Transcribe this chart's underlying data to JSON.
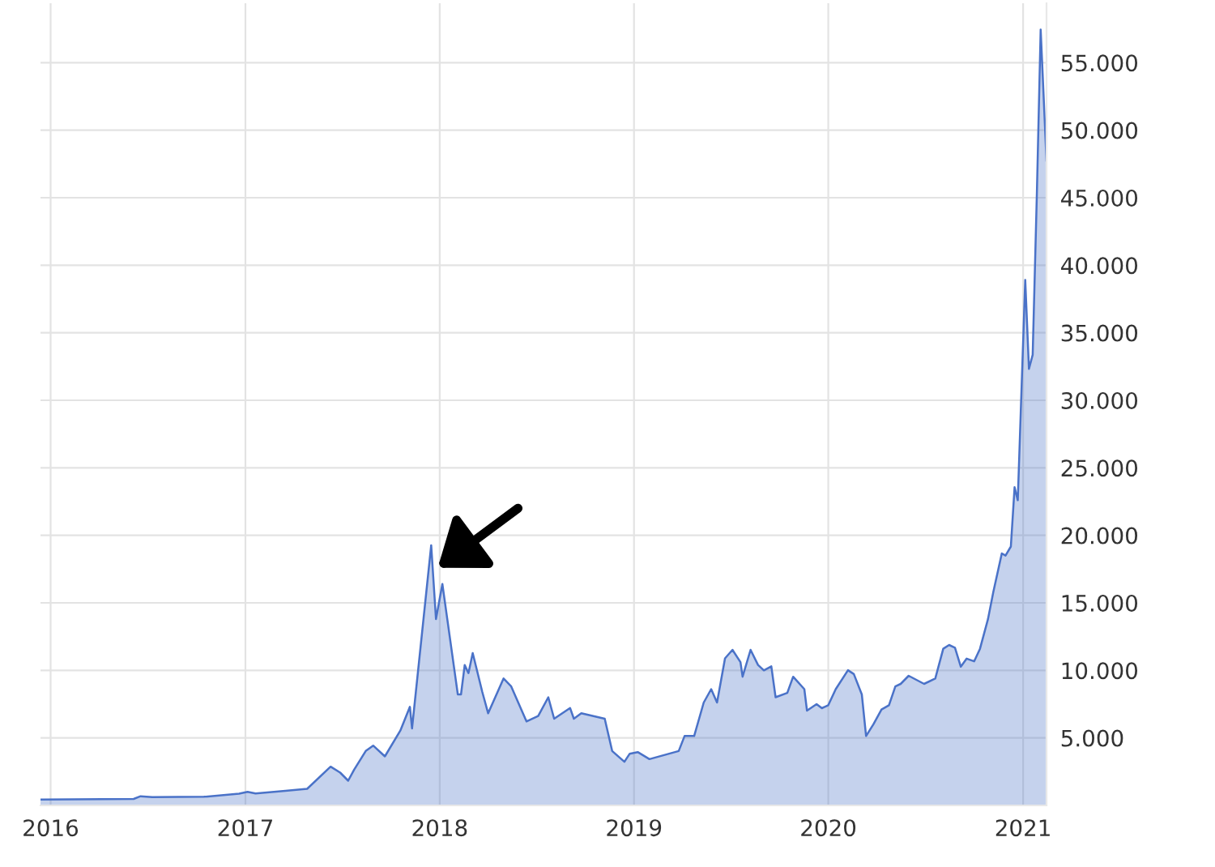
{
  "chart_data": {
    "type": "area",
    "x": [
      "2015-12-13",
      "2016-06-05",
      "2016-06-18",
      "2016-07-10",
      "2016-10-15",
      "2016-12-20",
      "2017-01-05",
      "2017-01-20",
      "2017-03-17",
      "2017-04-27",
      "2017-06-10",
      "2017-06-28",
      "2017-07-13",
      "2017-07-24",
      "2017-08-15",
      "2017-08-29",
      "2017-09-20",
      "2017-10-19",
      "2017-11-06",
      "2017-11-10",
      "2017-12-16",
      "2017-12-25",
      "2018-01-06",
      "2018-01-23",
      "2018-02-04",
      "2018-02-10",
      "2018-02-17",
      "2018-02-24",
      "2018-03-04",
      "2018-03-22",
      "2018-04-02",
      "2018-05-01",
      "2018-05-15",
      "2018-06-13",
      "2018-07-05",
      "2018-07-24",
      "2018-08-04",
      "2018-09-03",
      "2018-09-10",
      "2018-09-24",
      "2018-11-07",
      "2018-11-21",
      "2018-12-14",
      "2018-12-24",
      "2019-01-08",
      "2019-01-30",
      "2019-03-26",
      "2019-04-06",
      "2019-04-24",
      "2019-05-12",
      "2019-05-26",
      "2019-06-06",
      "2019-06-21",
      "2019-07-05",
      "2019-07-20",
      "2019-07-24",
      "2019-08-08",
      "2019-08-22",
      "2019-09-02",
      "2019-09-16",
      "2019-09-24",
      "2019-10-16",
      "2019-10-27",
      "2019-11-17",
      "2019-11-22",
      "2019-12-10",
      "2019-12-20",
      "2020-01-01",
      "2020-01-15",
      "2020-02-07",
      "2020-02-18",
      "2020-03-04",
      "2020-03-12",
      "2020-03-26",
      "2020-04-10",
      "2020-04-24",
      "2020-05-06",
      "2020-05-16",
      "2020-05-31",
      "2020-06-29",
      "2020-07-20",
      "2020-08-04",
      "2020-08-15",
      "2020-08-26",
      "2020-09-06",
      "2020-09-17",
      "2020-10-01",
      "2020-10-12",
      "2020-10-27",
      "2020-11-06",
      "2020-11-22",
      "2020-11-29",
      "2020-12-09",
      "2020-12-16",
      "2020-12-22",
      "2021-01-05",
      "2021-01-12",
      "2021-01-19",
      "2021-01-27",
      "2021-02-03",
      "2021-02-14"
    ],
    "series": [
      {
        "color": "#4a72c8",
        "values": [
          430,
          480,
          680,
          620,
          640,
          870,
          1000,
          880,
          1080,
          1230,
          2870,
          2430,
          1830,
          2630,
          4030,
          4430,
          3630,
          5540,
          7300,
          5700,
          19260,
          13800,
          16400,
          11600,
          8220,
          8220,
          10400,
          9800,
          11280,
          8400,
          6820,
          9400,
          8830,
          6220,
          6620,
          8010,
          6420,
          7210,
          6420,
          6820,
          6420,
          4030,
          3230,
          3830,
          3950,
          3430,
          4030,
          5140,
          5140,
          7620,
          8610,
          7620,
          10890,
          11520,
          10610,
          9530,
          11520,
          10400,
          10000,
          10300,
          8010,
          8330,
          9530,
          8610,
          7020,
          7500,
          7200,
          7420,
          8610,
          10010,
          9730,
          8220,
          5140,
          6020,
          7100,
          7420,
          8810,
          9000,
          9600,
          9000,
          9400,
          11600,
          11880,
          11680,
          10270,
          10870,
          10670,
          11600,
          13790,
          15790,
          18660,
          18500,
          19170,
          23560,
          22600,
          38910,
          32330,
          33370,
          45500,
          57450,
          47700
        ]
      }
    ],
    "xlim": [
      "2015-12-13",
      "2021-02-14"
    ],
    "xticks": [
      {
        "value": "2016-01-01",
        "label": "2016"
      },
      {
        "value": "2017-01-01",
        "label": "2017"
      },
      {
        "value": "2018-01-01",
        "label": "2018"
      },
      {
        "value": "2019-01-01",
        "label": "2019"
      },
      {
        "value": "2020-01-01",
        "label": "2020"
      },
      {
        "value": "2021-01-01",
        "label": "2021"
      }
    ],
    "ylim": [
      0,
      59400
    ],
    "yticks": [
      {
        "value": 5000,
        "label": "5.000"
      },
      {
        "value": 10000,
        "label": "10.000"
      },
      {
        "value": 15000,
        "label": "15.000"
      },
      {
        "value": 20000,
        "label": "20.000"
      },
      {
        "value": 25000,
        "label": "25.000"
      },
      {
        "value": 30000,
        "label": "30.000"
      },
      {
        "value": 35000,
        "label": "35.000"
      },
      {
        "value": 40000,
        "label": "40.000"
      },
      {
        "value": 45000,
        "label": "45.000"
      },
      {
        "value": 50000,
        "label": "50.000"
      },
      {
        "value": 55000,
        "label": "55.000"
      }
    ],
    "grid": true
  }
}
